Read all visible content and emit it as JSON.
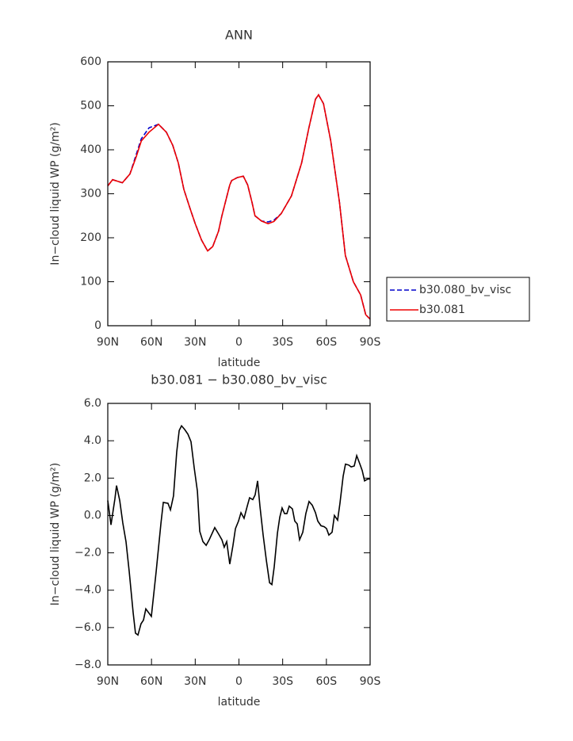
{
  "chart_data": [
    {
      "type": "line",
      "title": "ANN",
      "xlabel": "latitude",
      "ylabel": "In−cloud liquid WP (g/m²)",
      "x": [
        90,
        86.7,
        80,
        74.8,
        70.4,
        67,
        61.7,
        55.2,
        49.8,
        45.4,
        41.6,
        37.8,
        33.4,
        30,
        25.7,
        21.5,
        18,
        14,
        11.7,
        6.3,
        5,
        1,
        -3,
        -6,
        -9,
        -11,
        -15.5,
        -20,
        -24,
        -29,
        -36,
        -43,
        -48,
        -52.5,
        -54.6,
        -58,
        -63,
        -69,
        -73,
        -78.5,
        -83.5,
        -87,
        -90
      ],
      "series": [
        {
          "name": "b30.080_bv_visc",
          "color": "#0000cc",
          "dashed": true,
          "values": [
            318,
            332,
            325,
            345,
            390,
            425,
            450,
            458,
            440,
            410,
            370,
            310,
            265,
            232,
            195,
            170,
            180,
            215,
            250,
            320,
            330,
            337,
            340,
            320,
            280,
            250,
            238,
            236,
            240,
            255,
            295,
            370,
            450,
            515,
            525,
            505,
            420,
            280,
            160,
            100,
            70,
            25,
            15
          ]
        },
        {
          "name": "b30.081",
          "color": "#ee0000",
          "dashed": false,
          "values": [
            318,
            332,
            325,
            345,
            385,
            420,
            440,
            458,
            440,
            410,
            370,
            310,
            265,
            232,
            195,
            170,
            180,
            215,
            250,
            320,
            330,
            337,
            340,
            320,
            280,
            250,
            238,
            232,
            237,
            255,
            295,
            370,
            450,
            515,
            525,
            505,
            420,
            280,
            160,
            100,
            70,
            25,
            15
          ]
        }
      ],
      "xlim": [
        90,
        -90
      ],
      "xticks": [
        {
          "value": 90,
          "label": "90N"
        },
        {
          "value": 60,
          "label": "60N"
        },
        {
          "value": 30,
          "label": "30N"
        },
        0,
        {
          "value": -30,
          "label": "30S"
        },
        {
          "value": -60,
          "label": "60S"
        },
        {
          "value": -90,
          "label": "90S"
        }
      ],
      "ylim": [
        0,
        600
      ],
      "yticks": [
        0,
        100,
        200,
        300,
        400,
        500,
        600
      ],
      "legend": "outside-right"
    },
    {
      "type": "line",
      "title": "b30.081 − b30.080_bv_visc",
      "xlabel": "latitude",
      "ylabel": "In−cloud liquid WP (g/m²)",
      "color": "#000000",
      "x": [
        90,
        87.8,
        85.1,
        84.0,
        81.8,
        79.7,
        77.5,
        75.3,
        72.6,
        71.0,
        69.3,
        67.2,
        65.5,
        63.9,
        60.1,
        56.8,
        53.5,
        51.9,
        48.7,
        47.0,
        44.9,
        42.7,
        41.0,
        39.4,
        37.2,
        35.0,
        32.9,
        30.7,
        28.5,
        26.9,
        24.7,
        22.5,
        20.4,
        16.6,
        13.9,
        11.7,
        10.1,
        8.4,
        6.3,
        4.1,
        2.4,
        0.3,
        -1.4,
        -3.5,
        -5.7,
        -7.3,
        -9.5,
        -11.1,
        -12.8,
        -14.4,
        -16.6,
        -18.8,
        -21.0,
        -22.6,
        -24.2,
        -26.4,
        -28.0,
        -29.6,
        -31.3,
        -32.9,
        -34.5,
        -36.7,
        -38.3,
        -40.0,
        -41.6,
        -43.8,
        -45.9,
        -48.1,
        -50.3,
        -52.5,
        -54.1,
        -56.3,
        -58.5,
        -60.1,
        -61.7,
        -63.9,
        -65.5,
        -67.7,
        -69.3,
        -71.5,
        -73.1,
        -75.3,
        -77.0,
        -79.1,
        -80.8,
        -83.0,
        -84.6,
        -86.2,
        -88.4,
        -90
      ],
      "values": [
        0.8,
        -0.5,
        0.9,
        1.6,
        0.8,
        -0.4,
        -1.4,
        -3.0,
        -5.2,
        -6.3,
        -6.4,
        -5.8,
        -5.6,
        -5.0,
        -5.4,
        -3.0,
        -0.4,
        0.7,
        0.65,
        0.3,
        1.05,
        3.4,
        4.55,
        4.8,
        4.6,
        4.35,
        3.95,
        2.55,
        1.3,
        -0.85,
        -1.4,
        -1.6,
        -1.3,
        -0.65,
        -1.0,
        -1.3,
        -1.7,
        -1.4,
        -2.6,
        -1.6,
        -0.7,
        -0.3,
        0.15,
        -0.15,
        0.5,
        0.95,
        0.85,
        1.1,
        1.85,
        0.5,
        -1.05,
        -2.4,
        -3.6,
        -3.7,
        -2.75,
        -0.95,
        -0.1,
        0.4,
        0.1,
        0.1,
        0.5,
        0.35,
        -0.3,
        -0.45,
        -1.3,
        -0.9,
        0.1,
        0.75,
        0.55,
        0.15,
        -0.3,
        -0.55,
        -0.6,
        -0.7,
        -1.05,
        -0.9,
        0.0,
        -0.25,
        0.65,
        2.1,
        2.75,
        2.7,
        2.6,
        2.65,
        3.2,
        2.75,
        2.4,
        1.85,
        1.95,
        1.95
      ],
      "xlim": [
        90,
        -90
      ],
      "xticks": [
        {
          "value": 90,
          "label": "90N"
        },
        {
          "value": 60,
          "label": "60N"
        },
        {
          "value": 30,
          "label": "30N"
        },
        0,
        {
          "value": -30,
          "label": "30S"
        },
        {
          "value": -60,
          "label": "60S"
        },
        {
          "value": -90,
          "label": "90S"
        }
      ],
      "ylim": [
        -8,
        6
      ],
      "yticks": [
        {
          "value": -8,
          "label": "−8.0"
        },
        {
          "value": -6,
          "label": "−6.0"
        },
        {
          "value": -4,
          "label": "−4.0"
        },
        {
          "value": -2,
          "label": "−2.0"
        },
        {
          "value": 0,
          "label": "0.0"
        },
        {
          "value": 2,
          "label": "2.0"
        },
        {
          "value": 4,
          "label": "4.0"
        },
        {
          "value": 6,
          "label": "6.0"
        }
      ]
    }
  ]
}
